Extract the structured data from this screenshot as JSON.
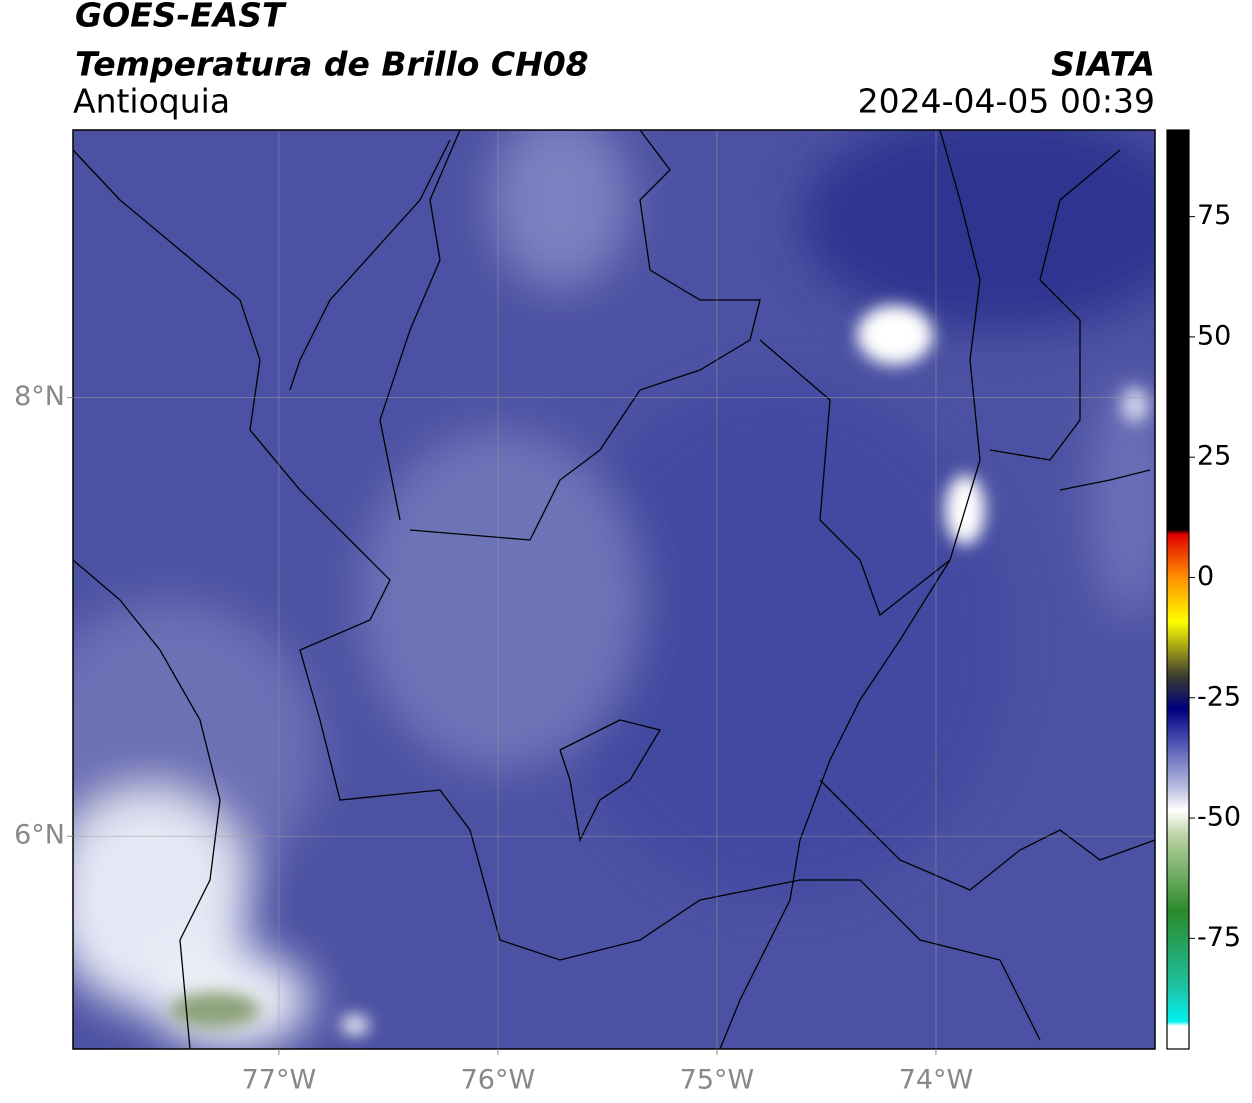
{
  "header": {
    "title": "GOES-EAST",
    "subtitle": "Temperatura de Brillo CH08",
    "region": "Antioquia",
    "source": "SIATA",
    "timestamp": "2024-04-05 00:39"
  },
  "map": {
    "xlim": [
      -77.94,
      -73.0
    ],
    "ylim": [
      5.03,
      9.22
    ],
    "xticks": [
      {
        "value": -77,
        "label": "77°W"
      },
      {
        "value": -76,
        "label": "76°W"
      },
      {
        "value": -75,
        "label": "75°W"
      },
      {
        "value": -74,
        "label": "74°W"
      }
    ],
    "yticks": [
      {
        "value": 8,
        "label": "8°N"
      },
      {
        "value": 6,
        "label": "6°N"
      }
    ],
    "grid": true
  },
  "colorbar": {
    "lim": [
      -98,
      93
    ],
    "ticks": [
      75,
      50,
      25,
      0,
      -25,
      -50,
      -75
    ]
  }
}
